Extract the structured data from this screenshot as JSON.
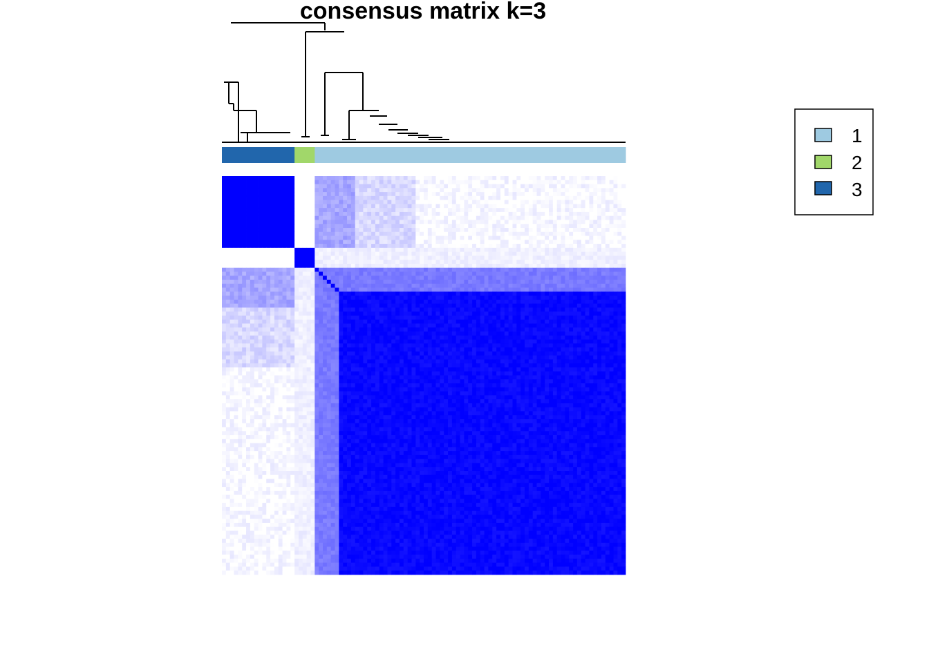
{
  "chart_data": {
    "type": "heatmap",
    "title": "consensus matrix k=3",
    "clusters": {
      "order": [
        3,
        2,
        1
      ],
      "sizes": [
        18,
        5,
        77
      ],
      "colors": {
        "1": "#9ecae1",
        "2": "#a1d76a",
        "3": "#2166ac"
      }
    },
    "value_range": [
      0,
      1
    ],
    "color_scale": {
      "low": "#ffffff",
      "high": "#0000ff"
    },
    "block_consensus": {
      "3-3": 1.0,
      "3-2": 0.0,
      "3-1a": 0.35,
      "3-1b": 0.15,
      "3-1c": 0.02,
      "2-2": 1.0,
      "2-1": 0.02,
      "1-1": 0.97
    },
    "legend": {
      "placement": "top-right",
      "entries": [
        {
          "label": "1",
          "color": "#9ecae1"
        },
        {
          "label": "2",
          "color": "#a1d76a"
        },
        {
          "label": "3",
          "color": "#2166ac"
        }
      ]
    }
  }
}
